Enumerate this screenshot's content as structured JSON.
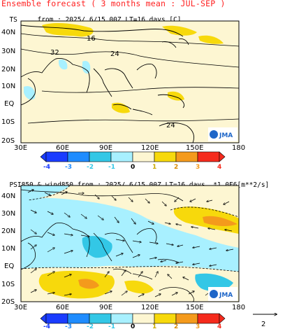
{
  "header": {
    "title": "Ensemble forecast ( 3 months mean : JUL-SEP )"
  },
  "panel1": {
    "var": "TS",
    "info": "from : 2025/ 6/15 00Z LT=16 days",
    "unit": "[C]",
    "contour_labels": [
      "16",
      "24",
      "32",
      "24"
    ],
    "logo": "JMA"
  },
  "panel2": {
    "var": "PSI850 & wind850",
    "info": "from : 2025/ 6/15 00Z LT=16 days",
    "unit": "*1.0E6[m**2/s]",
    "logo": "JMA",
    "vector_ref": "2"
  },
  "axes": {
    "lat_labels": [
      "40N",
      "30N",
      "20N",
      "10N",
      "EQ",
      "10S",
      "20S"
    ],
    "lon_labels": [
      "30E",
      "60E",
      "90E",
      "120E",
      "150E",
      "180"
    ]
  },
  "colorbar": {
    "labels": [
      "-4",
      "-3",
      "-2",
      "-1",
      "0",
      "1",
      "2",
      "3",
      "4"
    ],
    "colors": [
      "#1a3cff",
      "#1f8cff",
      "#33c7e6",
      "#a8f0ff",
      "#fdf6d2",
      "#fdf2a0",
      "#f7d90c",
      "#f49a1c",
      "#f52a1c"
    ]
  },
  "colors": {
    "title": "#ff2020",
    "land_line": "#000000",
    "neutral": "#fdf6d2"
  }
}
